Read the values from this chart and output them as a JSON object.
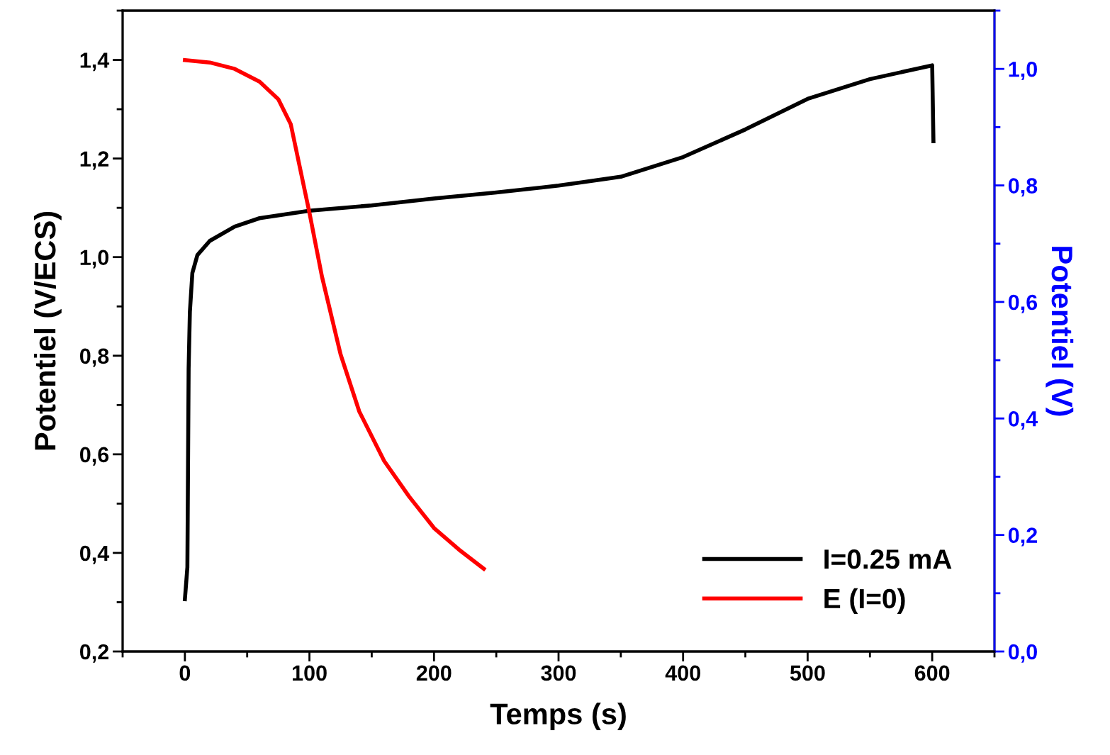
{
  "chart_data": {
    "type": "line",
    "xlabel": "Temps (s)",
    "ylabel": "Potentiel (V/ECS)",
    "y2label": "Potentiel (V)",
    "xlim": [
      -50,
      650
    ],
    "xticks": [
      {
        "value": -50,
        "label": null
      },
      0,
      {
        "value": 50,
        "label": null
      },
      100,
      {
        "value": 150,
        "label": null
      },
      200,
      {
        "value": 250,
        "label": null
      },
      300,
      {
        "value": 350,
        "label": null
      },
      400,
      {
        "value": 450,
        "label": null
      },
      500,
      {
        "value": 550,
        "label": null
      },
      600,
      {
        "value": 650,
        "label": null
      }
    ],
    "ylim": [
      0.2,
      1.5
    ],
    "yticks": [
      {
        "value": 0.2,
        "label": "0,2"
      },
      {
        "value": 0.3,
        "label": null
      },
      {
        "value": 0.4,
        "label": "0,4"
      },
      {
        "value": 0.5,
        "label": null
      },
      {
        "value": 0.6,
        "label": "0,6"
      },
      {
        "value": 0.7,
        "label": null
      },
      {
        "value": 0.8,
        "label": "0,8"
      },
      {
        "value": 0.9,
        "label": null
      },
      {
        "value": 1.0,
        "label": "1,0"
      },
      {
        "value": 1.1,
        "label": null
      },
      {
        "value": 1.2,
        "label": "1,2"
      },
      {
        "value": 1.3,
        "label": null
      },
      {
        "value": 1.4,
        "label": "1,4"
      },
      {
        "value": 1.5,
        "label": null
      }
    ],
    "y2lim": [
      0,
      1.1
    ],
    "y2ticks": [
      {
        "value": 0,
        "label": "0,0"
      },
      {
        "value": 0.1,
        "label": null
      },
      {
        "value": 0.2,
        "label": "0,2"
      },
      {
        "value": 0.3,
        "label": null
      },
      {
        "value": 0.4,
        "label": "0,4"
      },
      {
        "value": 0.5,
        "label": null
      },
      {
        "value": 0.6,
        "label": "0,6"
      },
      {
        "value": 0.7,
        "label": null
      },
      {
        "value": 0.8,
        "label": "0,8"
      },
      {
        "value": 0.9,
        "label": null
      },
      {
        "value": 1.0,
        "label": "1,0"
      },
      {
        "value": 1.1,
        "label": null
      }
    ],
    "grid": false,
    "legend": "bottom right",
    "marker": "none",
    "line_style": "solid",
    "series": [
      {
        "name": "I=0.25 mA",
        "color": "#000000",
        "x": [
          0,
          2,
          3,
          4,
          6,
          10,
          20,
          40,
          60,
          100,
          150,
          200,
          250,
          300,
          350,
          400,
          450,
          500,
          550,
          600,
          601
        ],
        "values": [
          0.306,
          0.371,
          0.774,
          0.889,
          0.968,
          1.004,
          1.033,
          1.062,
          1.079,
          1.094,
          1.105,
          1.119,
          1.131,
          1.145,
          1.163,
          1.203,
          1.259,
          1.321,
          1.361,
          1.389,
          1.235
        ]
      },
      {
        "name": "E (I=0)",
        "color": "#ff0000",
        "axis": "y2",
        "x": [
          0,
          20,
          40,
          60,
          75,
          85,
          100,
          110,
          125,
          140,
          160,
          180,
          200,
          220,
          240
        ],
        "values": [
          1.015,
          1.011,
          1.0,
          0.978,
          0.948,
          0.905,
          0.753,
          0.644,
          0.51,
          0.412,
          0.327,
          0.266,
          0.212,
          0.175,
          0.142
        ]
      }
    ]
  }
}
